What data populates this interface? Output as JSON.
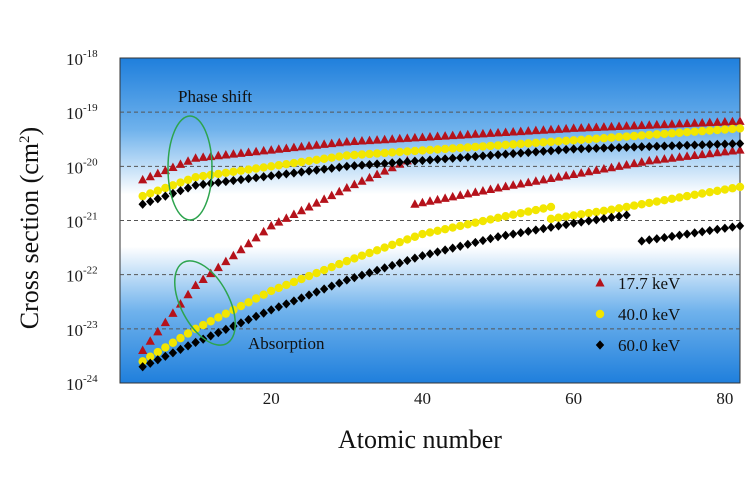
{
  "chart_data": {
    "type": "scatter",
    "xlabel": "Atomic number",
    "ylabel": {
      "main": "Cross section (cm",
      "sup": "2",
      "close": ")"
    },
    "xlim": [
      0,
      82
    ],
    "ylim_exp": [
      -24,
      -18
    ],
    "yscale": "log",
    "xticks": [
      20,
      40,
      60,
      80
    ],
    "yticks": [
      {
        "base": "10",
        "exp": "-18"
      },
      {
        "base": "10",
        "exp": "-19"
      },
      {
        "base": "10",
        "exp": "-20"
      },
      {
        "base": "10",
        "exp": "-21"
      },
      {
        "base": "10",
        "exp": "-22"
      },
      {
        "base": "10",
        "exp": "-23"
      },
      {
        "base": "10",
        "exp": "-24"
      }
    ],
    "grid": "dashed horizontal at each decade",
    "annotations": {
      "phase": "Phase shift",
      "absorption": "Absorption"
    },
    "legend": {
      "placement": "bottom-right"
    },
    "series": [
      {
        "name": "17.7 keV",
        "marker": "triangle",
        "color": "#b5121b",
        "phase": {
          "segments": [
            {
              "x_range": [
                3,
                82
              ],
              "logy_points": [
                [
                  3,
                  -20.25
                ],
                [
                  10,
                  -19.85
                ],
                [
                  30,
                  -19.55
                ],
                [
                  60,
                  -19.3
                ],
                [
                  82,
                  -19.17
                ]
              ]
            }
          ]
        },
        "absorption": {
          "segments": [
            {
              "x_range": [
                3,
                38
              ],
              "logy_points": [
                [
                  3,
                  -23.4
                ],
                [
                  10,
                  -22.2
                ],
                [
                  20,
                  -21.1
                ],
                [
                  30,
                  -20.4
                ],
                [
                  38,
                  -19.9
                ]
              ]
            },
            {
              "x_range": [
                39,
                82
              ],
              "logy_points": [
                [
                  39,
                  -20.7
                ],
                [
                  50,
                  -20.4
                ],
                [
                  60,
                  -20.15
                ],
                [
                  70,
                  -19.9
                ],
                [
                  82,
                  -19.7
                ]
              ]
            }
          ]
        }
      },
      {
        "name": "40.0 keV",
        "marker": "circle",
        "color": "#f2e600",
        "phase": {
          "segments": [
            {
              "x_range": [
                3,
                82
              ],
              "logy_points": [
                [
                  3,
                  -20.55
                ],
                [
                  10,
                  -20.2
                ],
                [
                  30,
                  -19.8
                ],
                [
                  60,
                  -19.52
                ],
                [
                  82,
                  -19.3
                ]
              ]
            }
          ]
        },
        "absorption": {
          "segments": [
            {
              "x_range": [
                3,
                57
              ],
              "logy_points": [
                [
                  3,
                  -23.6
                ],
                [
                  10,
                  -23.0
                ],
                [
                  20,
                  -22.3
                ],
                [
                  30,
                  -21.75
                ],
                [
                  40,
                  -21.25
                ],
                [
                  50,
                  -20.95
                ],
                [
                  57,
                  -20.75
                ]
              ]
            },
            {
              "x_range": [
                57,
                82
              ],
              "logy_points": [
                [
                  57,
                  -20.97
                ],
                [
                  65,
                  -20.8
                ],
                [
                  75,
                  -20.55
                ],
                [
                  82,
                  -20.38
                ]
              ]
            }
          ]
        }
      },
      {
        "name": "60.0 keV",
        "marker": "diamond",
        "color": "#000000",
        "phase": {
          "segments": [
            {
              "x_range": [
                3,
                82
              ],
              "logy_points": [
                [
                  3,
                  -20.7
                ],
                [
                  10,
                  -20.35
                ],
                [
                  30,
                  -20.0
                ],
                [
                  60,
                  -19.68
                ],
                [
                  82,
                  -19.58
                ]
              ]
            }
          ]
        },
        "absorption": {
          "segments": [
            {
              "x_range": [
                3,
                67
              ],
              "logy_points": [
                [
                  3,
                  -23.7
                ],
                [
                  10,
                  -23.25
                ],
                [
                  20,
                  -22.65
                ],
                [
                  30,
                  -22.1
                ],
                [
                  40,
                  -21.65
                ],
                [
                  50,
                  -21.3
                ],
                [
                  60,
                  -21.05
                ],
                [
                  67,
                  -20.9
                ]
              ]
            },
            {
              "x_range": [
                69,
                82
              ],
              "logy_points": [
                [
                  69,
                  -21.38
                ],
                [
                  75,
                  -21.25
                ],
                [
                  82,
                  -21.1
                ]
              ]
            }
          ]
        }
      }
    ]
  }
}
